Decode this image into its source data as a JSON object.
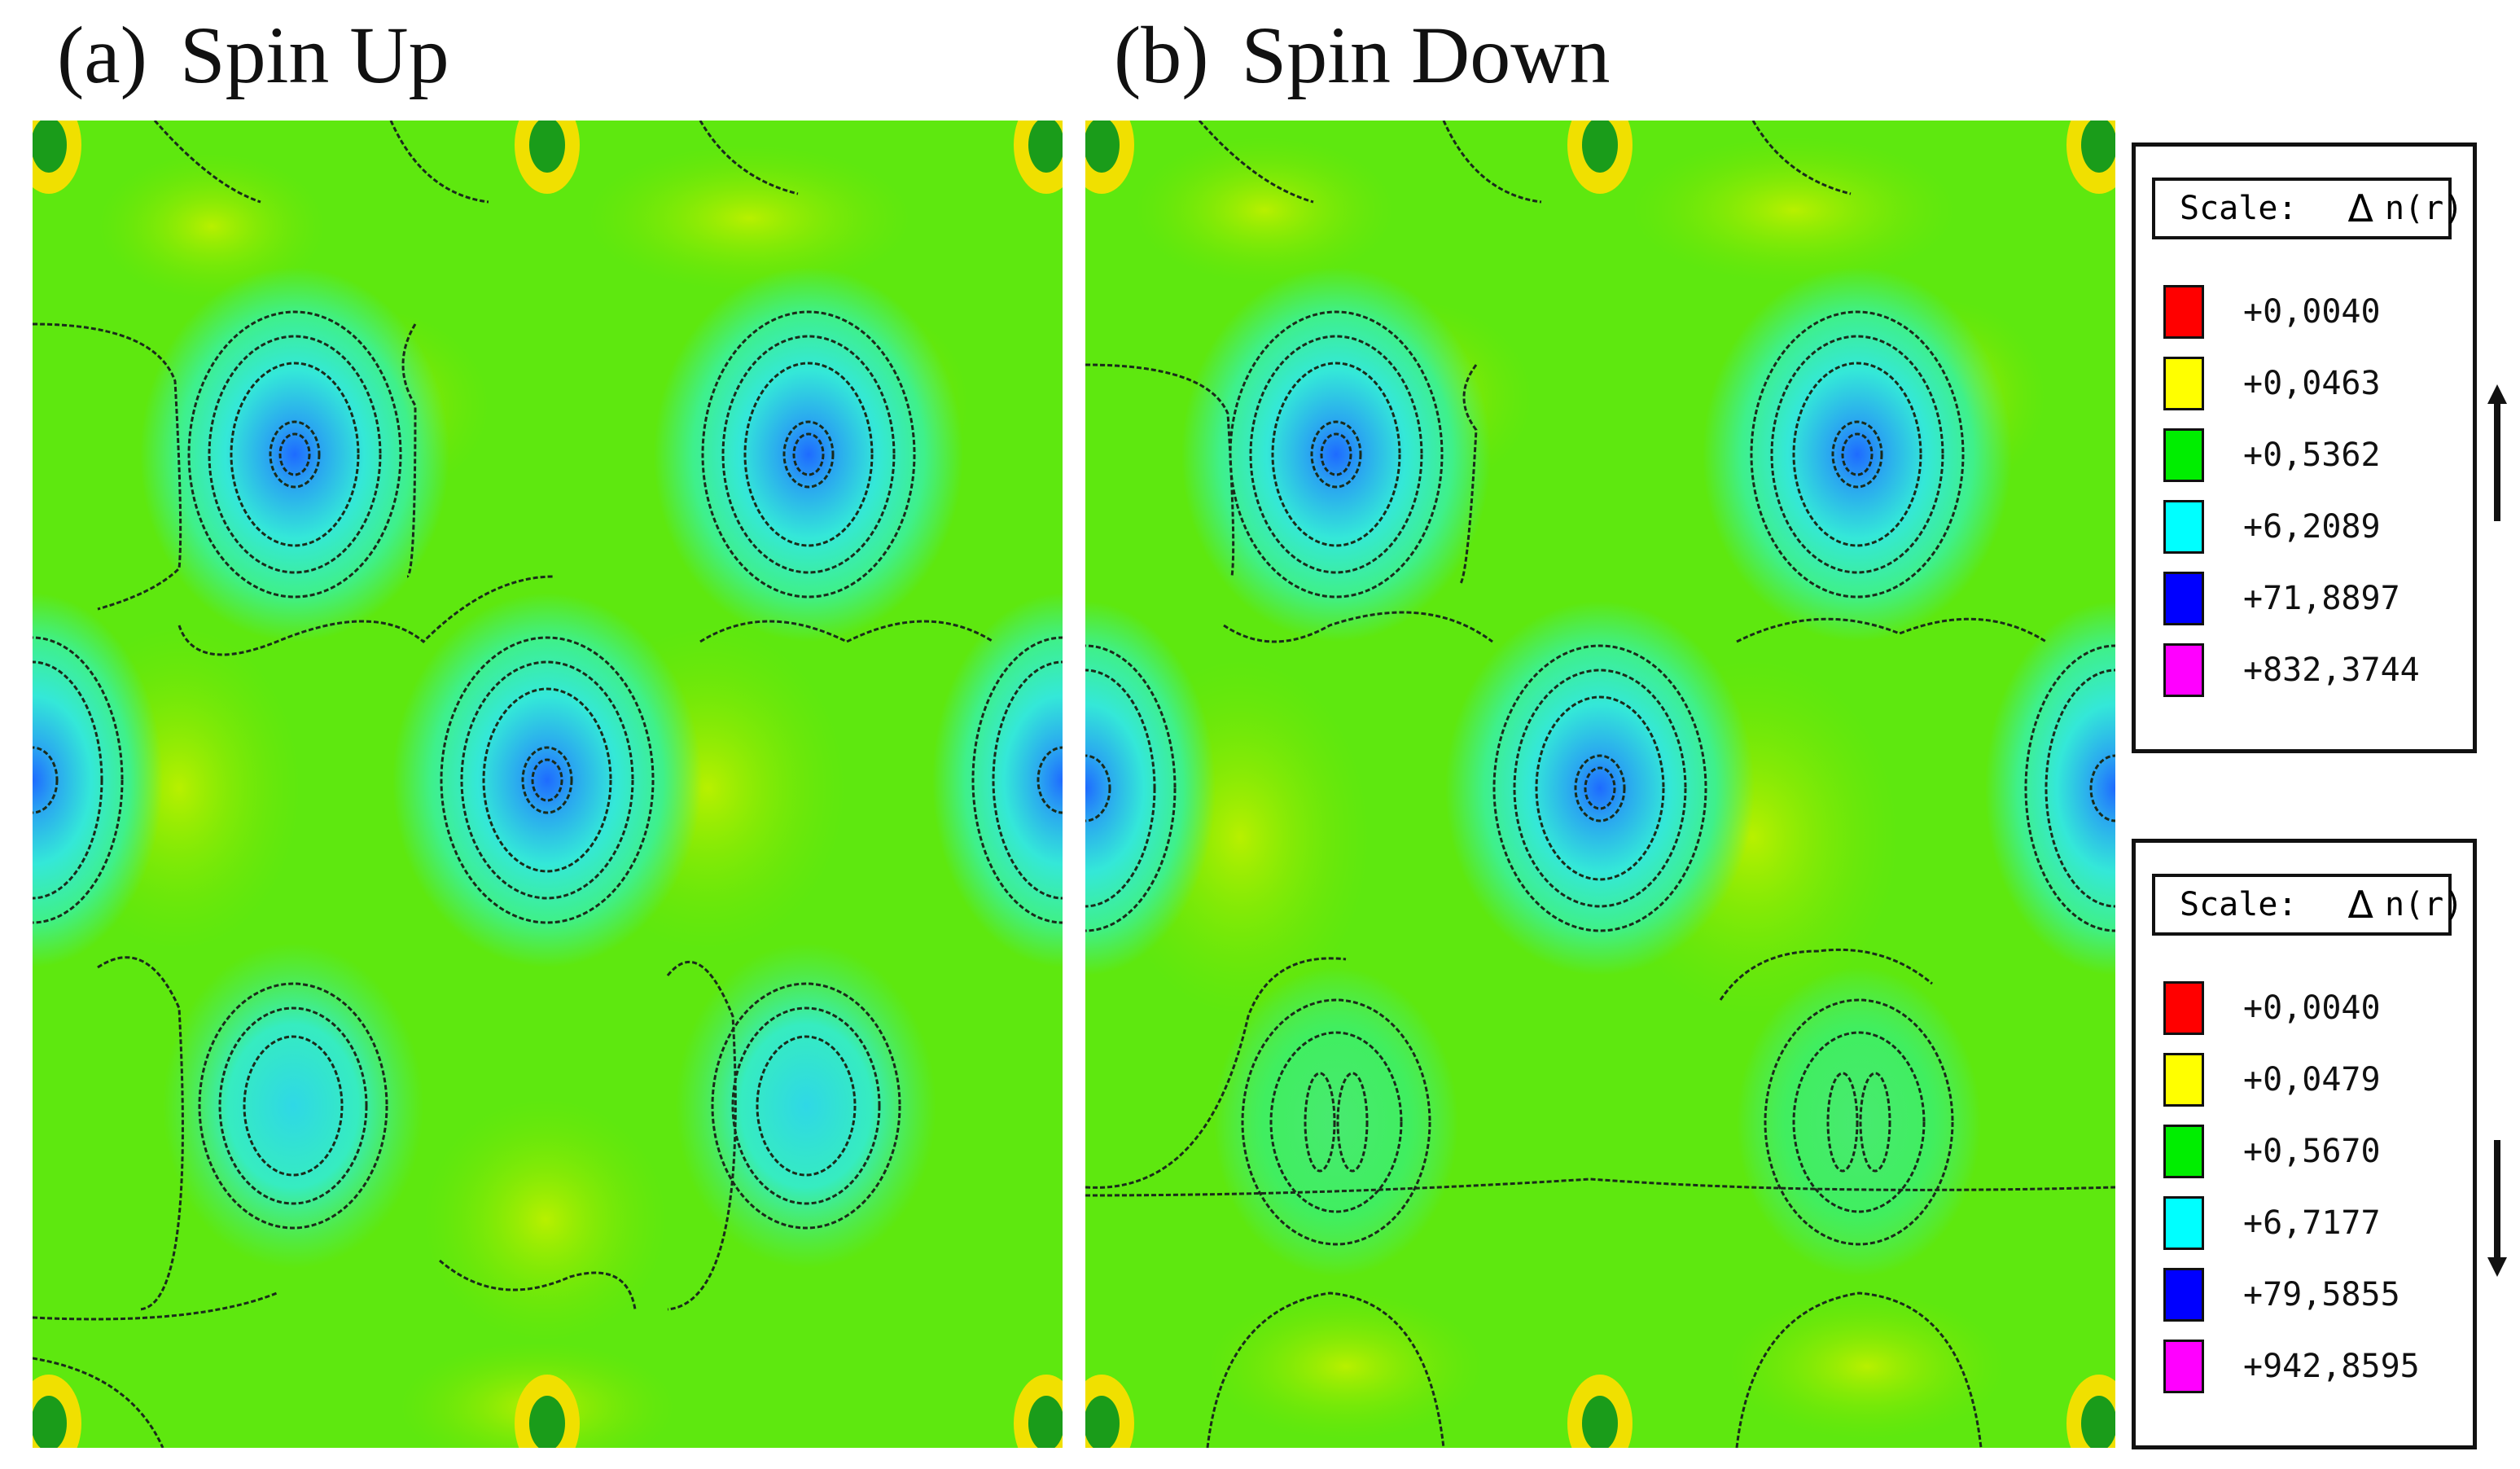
{
  "panels": [
    {
      "tag": "(a)",
      "title": "Spin Up"
    },
    {
      "tag": "(b)",
      "title": "Spin Down"
    }
  ],
  "legends": [
    {
      "scale_label": "Scale:",
      "symbol": "Δ",
      "quantity": "n(r)",
      "direction": "up",
      "items": [
        {
          "value": "+0,0040",
          "color": "#ff0000"
        },
        {
          "value": "+0,0463",
          "color": "#ffff00"
        },
        {
          "value": "+0,5362",
          "color": "#00ee00"
        },
        {
          "value": "+6,2089",
          "color": "#00ffff"
        },
        {
          "value": "+71,8897",
          "color": "#0000ff"
        },
        {
          "value": "+832,3744",
          "color": "#ff00ff"
        }
      ]
    },
    {
      "scale_label": "Scale:",
      "symbol": "Δ",
      "quantity": "n(r)",
      "direction": "down",
      "items": [
        {
          "value": "+0,0040",
          "color": "#ff0000"
        },
        {
          "value": "+0,0479",
          "color": "#ffff00"
        },
        {
          "value": "+0,5670",
          "color": "#00ee00"
        },
        {
          "value": "+6,7177",
          "color": "#00ffff"
        },
        {
          "value": "+79,5855",
          "color": "#0000ff"
        },
        {
          "value": "+942,8595",
          "color": "#ff00ff"
        }
      ]
    }
  ]
}
